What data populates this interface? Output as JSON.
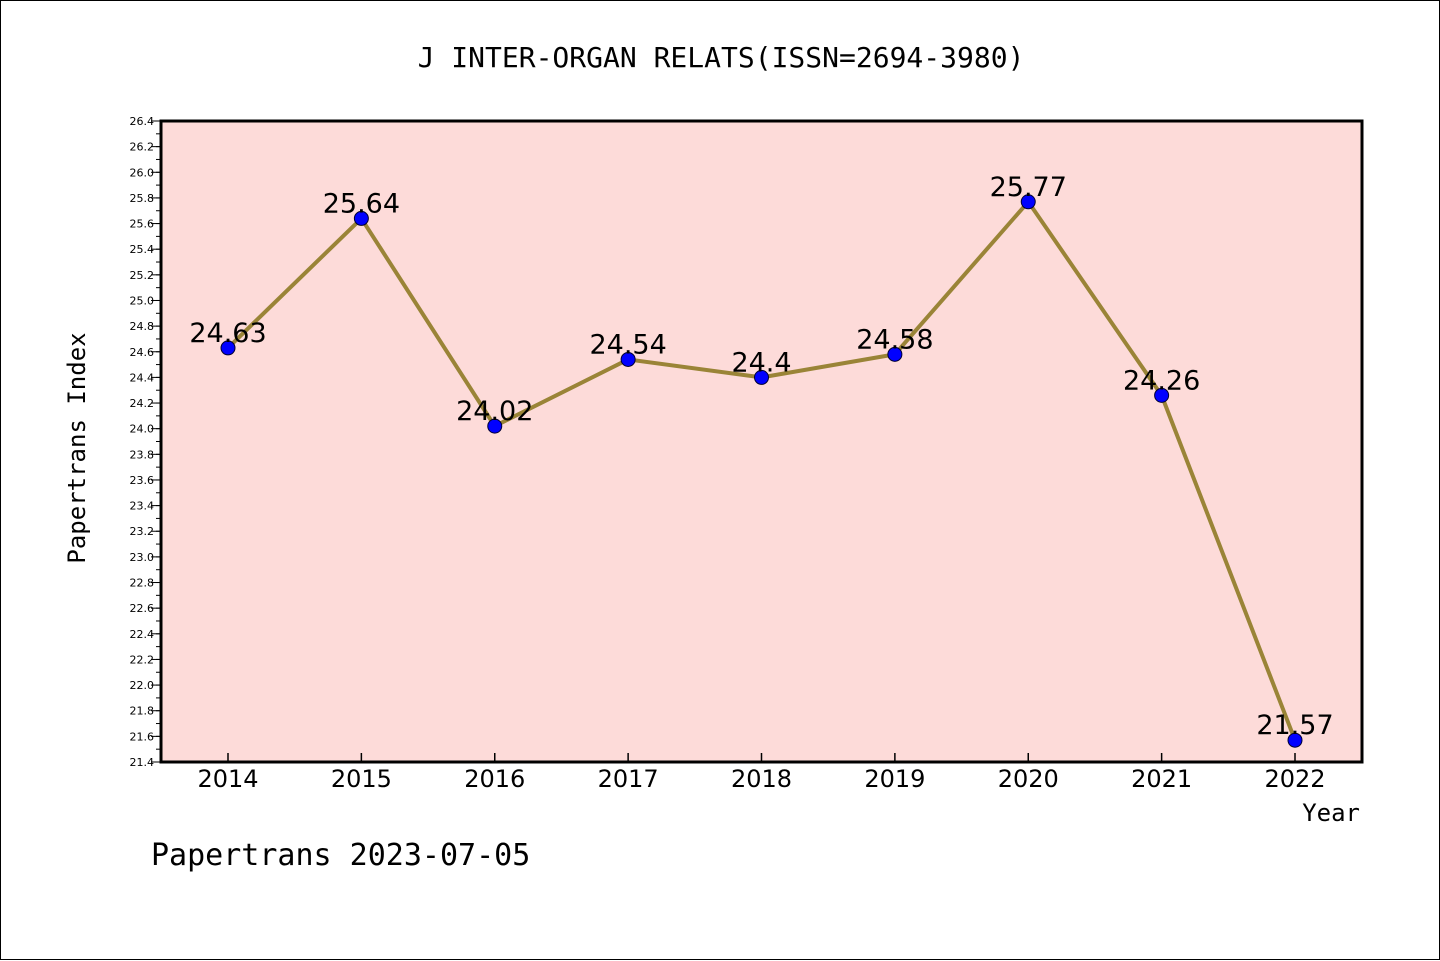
{
  "chart_data": {
    "type": "line",
    "title": "J INTER-ORGAN RELATS(ISSN=2694-3980)",
    "xlabel": "Year",
    "ylabel": "Papertrans Index",
    "categories": [
      "2014",
      "2015",
      "2016",
      "2017",
      "2018",
      "2019",
      "2020",
      "2021",
      "2022"
    ],
    "values": [
      24.63,
      25.64,
      24.02,
      24.54,
      24.4,
      24.58,
      25.77,
      24.26,
      21.57
    ],
    "data_labels": [
      "24.63",
      "25.64",
      "24.02",
      "24.54",
      "24.4",
      "24.58",
      "25.77",
      "24.26",
      "21.57"
    ],
    "ylim": [
      21.4,
      26.4
    ],
    "yticks": [
      "21.4",
      "21.6",
      "21.8",
      "22.0",
      "22.2",
      "22.4",
      "22.6",
      "22.8",
      "23.0",
      "23.2",
      "23.4",
      "23.6",
      "23.8",
      "24.0",
      "24.2",
      "24.4",
      "24.6",
      "24.8",
      "25.0",
      "25.2",
      "25.4",
      "25.6",
      "25.8",
      "26.0",
      "26.2",
      "26.4"
    ],
    "grid": false,
    "legend": "none",
    "colors": {
      "plot_background": "#fddbd9",
      "line": "#9a8437",
      "marker": "#0000ff"
    }
  },
  "footer": {
    "text": "Papertrans 2023-07-05"
  }
}
